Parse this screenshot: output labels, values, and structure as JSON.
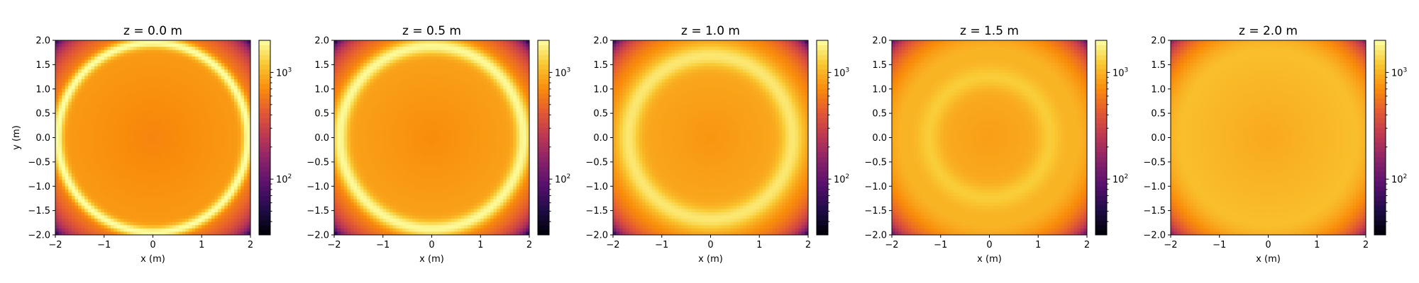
{
  "chart_data": {
    "type": "heatmap",
    "colormap": "inferno",
    "color_scale": "log",
    "xlabel": "x (m)",
    "ylabel": "y (m)",
    "xlim": [
      -2,
      2
    ],
    "ylim": [
      -2,
      2
    ],
    "x_ticks": [
      "−2",
      "−1",
      "0",
      "1",
      "2"
    ],
    "y_ticks": [
      "2.0",
      "1.5",
      "1.0",
      "0.5",
      "0.0",
      "−0.5",
      "−1.0",
      "−1.5",
      "−2.0"
    ],
    "colorbar": {
      "range": [
        30,
        2000
      ],
      "ticks": [
        {
          "value": 100,
          "base": "10",
          "exp": "2"
        },
        {
          "value": 1000,
          "base": "10",
          "exp": "3"
        }
      ]
    },
    "panels": [
      {
        "title": "z = 0.0 m",
        "z": 0.0,
        "ring_radius": 1.95,
        "ring_width": 0.1,
        "ring_peak": 2000,
        "center_value": 650,
        "corner_value": 60
      },
      {
        "title": "z = 0.5 m",
        "z": 0.5,
        "ring_radius": 1.88,
        "ring_width": 0.14,
        "ring_peak": 1900,
        "center_value": 700,
        "corner_value": 45
      },
      {
        "title": "z = 1.0 m",
        "z": 1.0,
        "ring_radius": 1.68,
        "ring_width": 0.2,
        "ring_peak": 1600,
        "center_value": 760,
        "corner_value": 55
      },
      {
        "title": "z = 1.5 m",
        "z": 1.5,
        "ring_radius": 1.25,
        "ring_width": 0.22,
        "ring_peak": 1250,
        "center_value": 820,
        "corner_value": 110
      },
      {
        "title": "z = 2.0 m",
        "z": 2.0,
        "ring_radius": 0.0,
        "ring_width": 0.0,
        "ring_peak": 0,
        "center_value": 900,
        "corner_value": 160
      }
    ]
  }
}
